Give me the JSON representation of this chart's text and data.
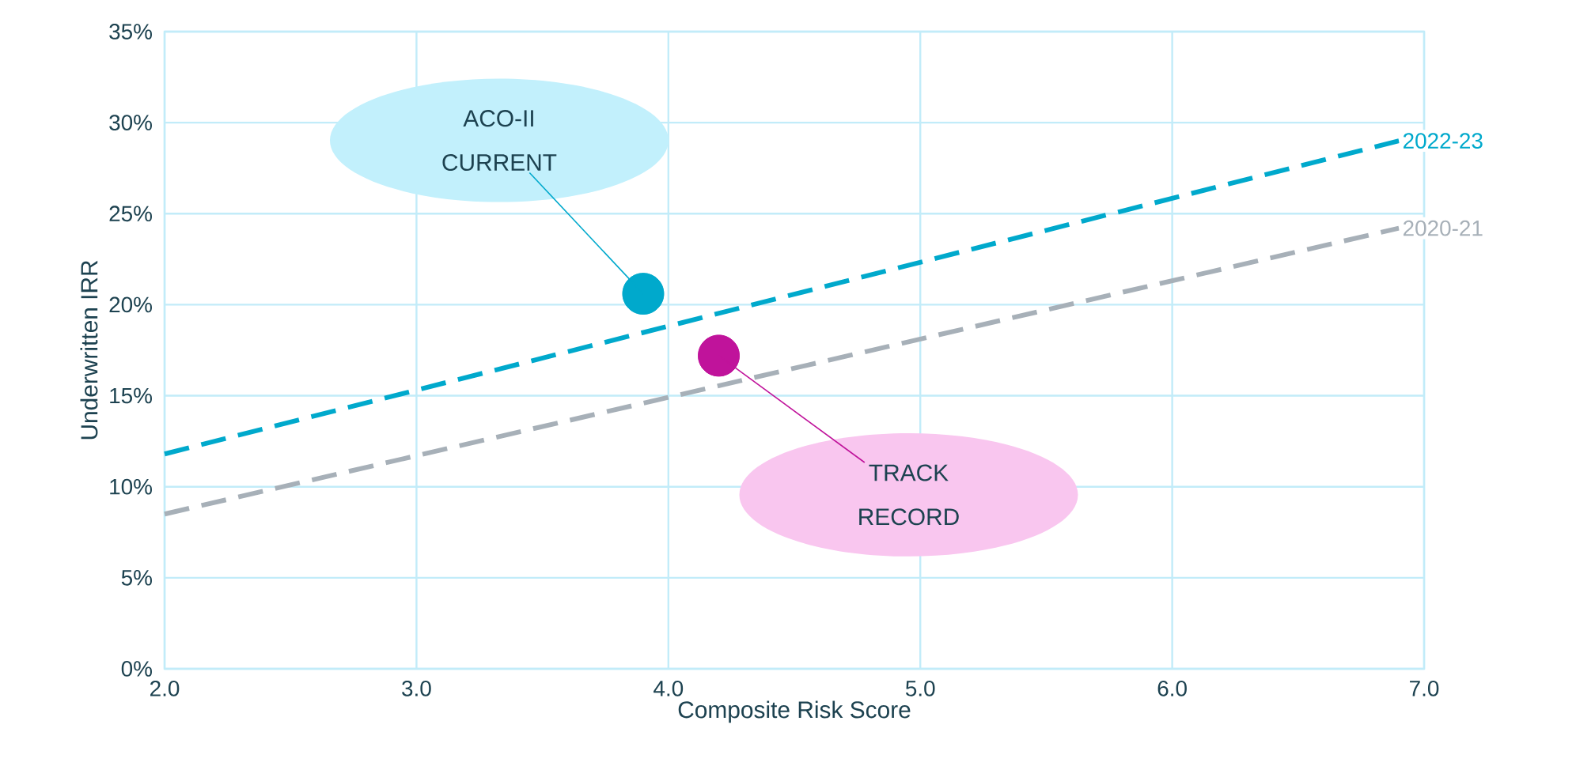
{
  "chart_data": {
    "type": "line",
    "xlabel": "Composite Risk Score",
    "ylabel": "Underwritten IRR",
    "xlim": [
      2,
      7
    ],
    "ylim": [
      0,
      35
    ],
    "xticks": [
      {
        "value": 2,
        "label": "2.0"
      },
      {
        "value": 3,
        "label": "3.0"
      },
      {
        "value": 4,
        "label": "4.0"
      },
      {
        "value": 5,
        "label": "5.0"
      },
      {
        "value": 6,
        "label": "6.0"
      },
      {
        "value": 7,
        "label": "7.0"
      }
    ],
    "yticks": [
      {
        "value": 0,
        "label": "0%"
      },
      {
        "value": 5,
        "label": "5%"
      },
      {
        "value": 10,
        "label": "10%"
      },
      {
        "value": 15,
        "label": "15%"
      },
      {
        "value": 20,
        "label": "20%"
      },
      {
        "value": 25,
        "label": "25%"
      },
      {
        "value": 30,
        "label": "30%"
      },
      {
        "value": 35,
        "label": "35%"
      }
    ],
    "grid": true,
    "series": [
      {
        "name": "2022-23",
        "color": "#00a9cc",
        "x": [
          2.0,
          6.9
        ],
        "values": [
          11.8,
          29.0
        ],
        "line_style": "dashed",
        "marker": "none"
      },
      {
        "name": "2020-21",
        "color": "#a7b0b8",
        "x": [
          2.0,
          6.9
        ],
        "values": [
          8.5,
          24.2
        ],
        "line_style": "dashed",
        "marker": "none"
      },
      {
        "type": "scatter",
        "color": "#00a9cc",
        "x": [
          3.9
        ],
        "values": [
          20.6
        ],
        "marker": "circle"
      },
      {
        "type": "scatter",
        "color": "#c0139b",
        "x": [
          4.2
        ],
        "values": [
          17.2
        ],
        "marker": "circle"
      }
    ],
    "annotations": [
      {
        "text": "ACO-II CURRENT",
        "x": 3.9,
        "y": 20.6
      },
      {
        "text": "TRACK RECORD",
        "x": 4.2,
        "y": 17.2
      }
    ]
  }
}
